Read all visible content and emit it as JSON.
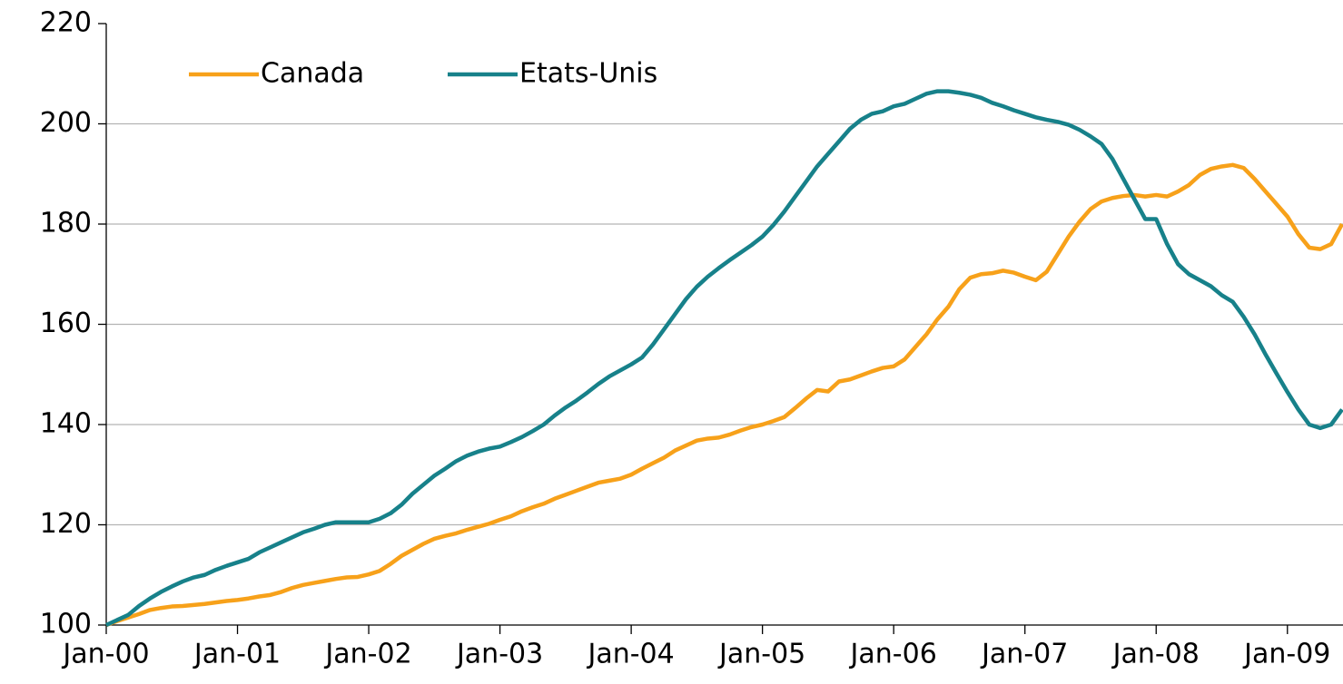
{
  "chart_data": {
    "type": "line",
    "categories": [
      "Jan-00",
      null,
      null,
      null,
      null,
      null,
      null,
      null,
      null,
      null,
      null,
      null,
      "Jan-01",
      null,
      null,
      null,
      null,
      null,
      null,
      null,
      null,
      null,
      null,
      null,
      "Jan-02",
      null,
      null,
      null,
      null,
      null,
      null,
      null,
      null,
      null,
      null,
      null,
      "Jan-03",
      null,
      null,
      null,
      null,
      null,
      null,
      null,
      null,
      null,
      null,
      null,
      "Jan-04",
      null,
      null,
      null,
      null,
      null,
      null,
      null,
      null,
      null,
      null,
      null,
      "Jan-05",
      null,
      null,
      null,
      null,
      null,
      null,
      null,
      null,
      null,
      null,
      null,
      "Jan-06",
      null,
      null,
      null,
      null,
      null,
      null,
      null,
      null,
      null,
      null,
      null,
      "Jan-07",
      null,
      null,
      null,
      null,
      null,
      null,
      null,
      null,
      null,
      null,
      null,
      "Jan-08",
      null,
      null,
      null,
      null,
      null,
      null,
      null,
      null,
      null,
      null,
      null,
      "Jan-09",
      null,
      null,
      null,
      null,
      null
    ],
    "series": [
      {
        "name": "Canada",
        "color": "#f7a11a",
        "values": [
          100,
          100.8,
          101.5,
          102.2,
          103,
          103.4,
          103.7,
          103.8,
          104,
          104.2,
          104.5,
          104.8,
          105,
          105.3,
          105.7,
          106,
          106.6,
          107.4,
          108,
          108.4,
          108.8,
          109.2,
          109.5,
          109.6,
          110.1,
          110.8,
          112.2,
          113.8,
          115,
          116.2,
          117.2,
          117.8,
          118.3,
          119,
          119.6,
          120.2,
          121,
          121.7,
          122.7,
          123.5,
          124.2,
          125.2,
          126,
          126.8,
          127.6,
          128.4,
          128.8,
          129.2,
          130,
          131.2,
          132.3,
          133.4,
          134.8,
          135.8,
          136.8,
          137.2,
          137.4,
          138,
          138.8,
          139.5,
          140,
          140.7,
          141.5,
          143.3,
          145.2,
          146.9,
          146.6,
          148.6,
          149,
          149.8,
          150.6,
          151.3,
          151.6,
          153,
          155.5,
          158,
          161,
          163.5,
          167,
          169.3,
          170,
          170.2,
          170.7,
          170.3,
          169.5,
          168.8,
          170.5,
          174,
          177.5,
          180.5,
          183,
          184.5,
          185.2,
          185.6,
          185.8,
          185.5,
          185.8,
          185.5,
          186.5,
          187.8,
          189.8,
          191,
          191.5,
          191.8,
          191.2,
          189,
          186.5,
          184,
          181.5,
          178,
          175.3,
          175,
          176,
          180
        ]
      },
      {
        "name": "Etats-Unis",
        "color": "#17818a",
        "values": [
          100,
          101,
          102,
          103.8,
          105.3,
          106.6,
          107.7,
          108.7,
          109.5,
          110,
          111,
          111.8,
          112.5,
          113.2,
          114.5,
          115.5,
          116.5,
          117.5,
          118.5,
          119.2,
          120,
          120.5,
          120.5,
          120.5,
          120.5,
          121.2,
          122.3,
          124,
          126.2,
          128,
          129.8,
          131.2,
          132.7,
          133.8,
          134.6,
          135.2,
          135.6,
          136.5,
          137.5,
          138.7,
          140,
          141.8,
          143.4,
          144.8,
          146.4,
          148.1,
          149.6,
          150.8,
          152,
          153.4,
          156,
          159,
          162,
          165,
          167.5,
          169.5,
          171.2,
          172.8,
          174.3,
          175.8,
          177.5,
          179.8,
          182.5,
          185.5,
          188.5,
          191.5,
          194,
          196.5,
          199,
          200.8,
          202,
          202.5,
          203.5,
          204,
          205,
          206,
          206.5,
          206.5,
          206.2,
          205.8,
          205.2,
          204.2,
          203.5,
          202.7,
          202,
          201.3,
          200.8,
          200.4,
          199.8,
          198.8,
          197.5,
          196,
          193,
          189,
          185,
          181,
          181,
          176,
          172,
          170,
          168.8,
          167.6,
          165.8,
          164.5,
          161.5,
          158,
          154,
          150.2,
          146.5,
          143,
          140,
          139.3,
          140,
          143
        ]
      }
    ],
    "ylim": [
      100,
      220
    ],
    "yticks": [
      100,
      120,
      140,
      160,
      180,
      200,
      220
    ],
    "grid": true,
    "legend": "upper left"
  }
}
